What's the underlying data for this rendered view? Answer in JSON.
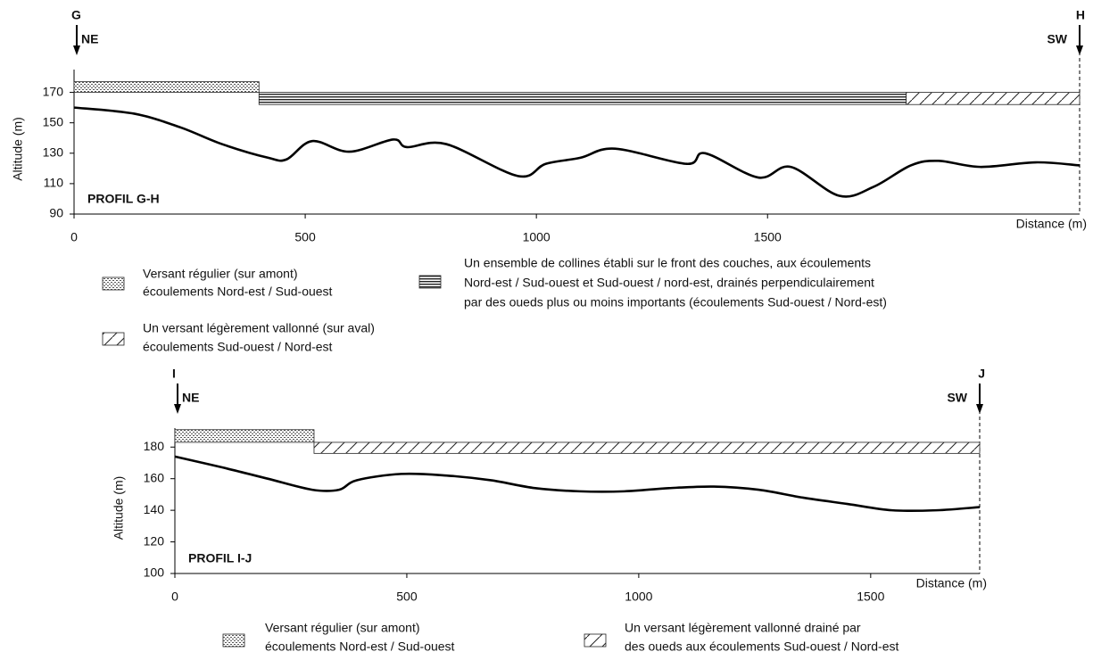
{
  "chart_data": [
    {
      "type": "line",
      "title": "PROFIL G-H",
      "start_label": "G",
      "start_direction": "NE",
      "end_label": "H",
      "end_direction": "SW",
      "xlabel": "Distance (m)",
      "ylabel": "Altitude (m)",
      "color": "#000000",
      "x": [
        0,
        130,
        230,
        320,
        420,
        460,
        515,
        595,
        690,
        720,
        805,
        960,
        1020,
        1095,
        1170,
        1325,
        1365,
        1480,
        1550,
        1655,
        1730,
        1810,
        1870,
        1960,
        2080,
        2175
      ],
      "values": [
        160,
        156,
        147,
        136,
        127,
        126,
        138,
        131,
        139,
        134,
        136,
        115,
        123,
        127,
        133,
        123,
        130,
        114,
        121,
        102,
        108,
        122,
        125,
        121,
        124,
        122
      ],
      "xlim": [
        0,
        2175
      ],
      "ylim": [
        90,
        185
      ],
      "xticks": [
        0,
        500,
        1000,
        1500
      ],
      "yticks": [
        90,
        110,
        130,
        150,
        170
      ],
      "zones": [
        {
          "pattern": "dots",
          "x": [
            0,
            400
          ],
          "y": [
            170,
            177
          ],
          "legend": [
            "Versant régulier (sur amont)",
            "écoulements Nord-est / Sud-ouest"
          ]
        },
        {
          "pattern": "lines",
          "x": [
            400,
            1800
          ],
          "y": [
            162,
            170
          ],
          "legend": [
            "Un ensemble de collines établi sur le front des couches, aux écoulements",
            "Nord-est / Sud-ouest et Sud-ouest / nord-est, drainés perpendiculairement",
            "par des oueds plus ou moins importants (écoulements Sud-ouest / Nord-est)"
          ]
        },
        {
          "pattern": "diagonal",
          "x": [
            1800,
            2175
          ],
          "y": [
            162,
            170
          ],
          "legend": [
            "Un versant légèrement vallonné (sur aval)",
            "écoulements Sud-ouest / Nord-est"
          ]
        }
      ]
    },
    {
      "type": "line",
      "title": "PROFIL I-J",
      "start_label": "I",
      "start_direction": "NE",
      "end_label": "J",
      "end_direction": "SW",
      "xlabel": "Distance (m)",
      "ylabel": "Altitude (m)",
      "color": "#000000",
      "x": [
        0,
        104,
        200,
        296,
        354,
        392,
        488,
        585,
        681,
        777,
        873,
        969,
        1065,
        1162,
        1258,
        1354,
        1450,
        1546,
        1642,
        1735
      ],
      "values": [
        174,
        167,
        160,
        153,
        153,
        159,
        163,
        162,
        159,
        154,
        152,
        152,
        154,
        155,
        153,
        148,
        144,
        140,
        140,
        142
      ],
      "xlim": [
        0,
        1735
      ],
      "ylim": [
        100,
        192
      ],
      "xticks": [
        0,
        500,
        1000,
        1500
      ],
      "yticks": [
        100,
        120,
        140,
        160,
        180
      ],
      "zones": [
        {
          "pattern": "dots",
          "x": [
            0,
            300
          ],
          "y": [
            183,
            191
          ],
          "legend": [
            "Versant régulier (sur amont)",
            "écoulements Nord-est / Sud-ouest"
          ]
        },
        {
          "pattern": "diagonal",
          "x": [
            300,
            1735
          ],
          "y": [
            176,
            183
          ],
          "legend": [
            "Un versant légèrement vallonné drainé par",
            "des oueds aux écoulements Sud-ouest / Nord-est"
          ]
        }
      ]
    }
  ]
}
